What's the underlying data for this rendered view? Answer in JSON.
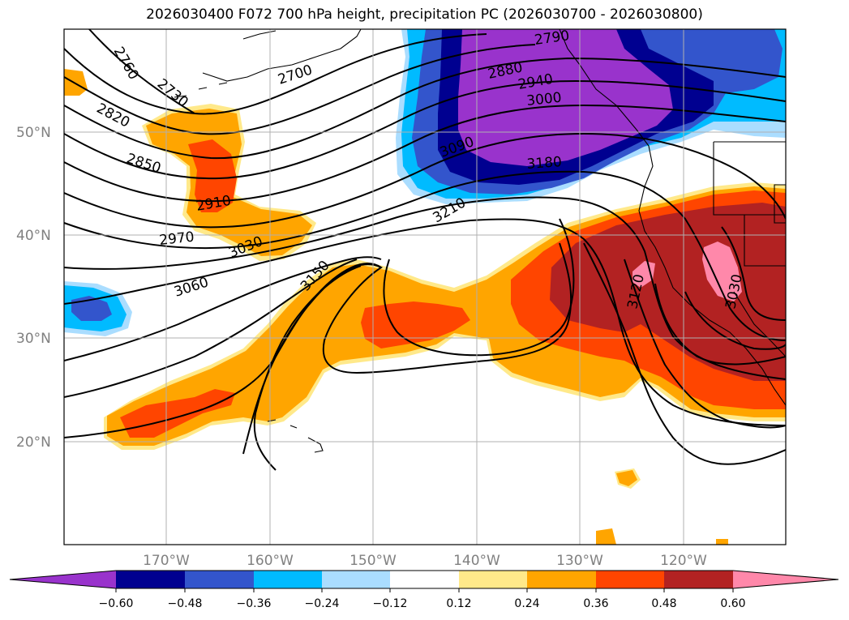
{
  "title": "2026030400 F072 700 hPa height, precipitation PC (2026030700 - 2026030800)",
  "map": {
    "lat_labels": [
      "50°N",
      "40°N",
      "30°N",
      "20°N"
    ],
    "lon_labels": [
      "170°W",
      "160°W",
      "150°W",
      "140°W",
      "130°W",
      "120°W"
    ],
    "contour_labels": [
      "2760",
      "2730",
      "2700",
      "2790",
      "2820",
      "2850",
      "2880",
      "2940",
      "3000",
      "3090",
      "3180",
      "2910",
      "3210",
      "2970",
      "3030",
      "3150",
      "3060",
      "3120",
      "3030"
    ]
  },
  "colorbar": {
    "ticks": [
      "−0.60",
      "−0.48",
      "−0.36",
      "−0.24",
      "−0.12",
      "0.12",
      "0.24",
      "0.36",
      "0.48",
      "0.60"
    ],
    "colors": {
      "lt_-0.60": "#9933cc",
      "-0.60_-0.48": "#000090",
      "-0.48_-0.36": "#3355cc",
      "-0.36_-0.24": "#00bbff",
      "-0.24_-0.12": "#aaddff",
      "-0.12_0.12": "#ffffff",
      "0.12_0.24": "#ffe98a",
      "0.24_0.36": "#ffa500",
      "0.36_0.48": "#ff4500",
      "0.48_0.60": "#b22222",
      "gt_0.60": "#ff88aa"
    }
  }
}
